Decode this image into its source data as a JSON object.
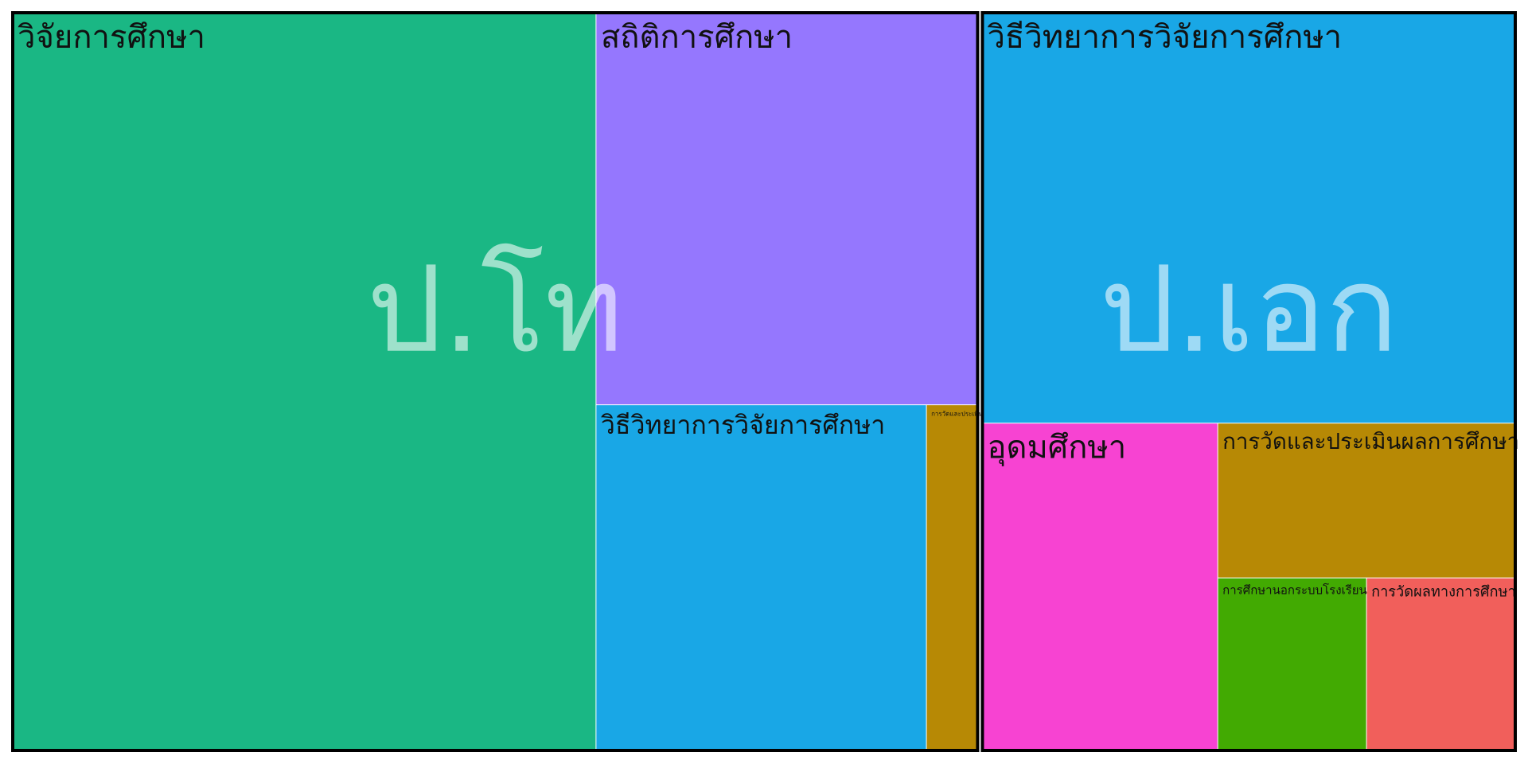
{
  "chart_data": {
    "type": "treemap",
    "groups": [
      {
        "name": "ป.โท",
        "children": [
          {
            "name": "วิจัยการศึกษา",
            "value": 486,
            "color": "#1ab784"
          },
          {
            "name": "สถิติการศึกษา",
            "value": 169,
            "color": "#9577fe"
          },
          {
            "name": "วิธีวิทยาการวิจัยการศึกษา",
            "value": 129,
            "color": "#19a7e6"
          },
          {
            "name": "การวัดและประเมินผลการศึกษา",
            "value": 20,
            "color": "#b78905"
          }
        ]
      },
      {
        "name": "ป.เอก",
        "children": [
          {
            "name": "วิธีวิทยาการวิจัยการศึกษา",
            "value": 247,
            "color": "#19a7e6"
          },
          {
            "name": "อุดมศึกษา",
            "value": 87,
            "color": "#f743d2"
          },
          {
            "name": "การวัดและประเมินผลการศึกษา",
            "value": 52,
            "color": "#b78905"
          },
          {
            "name": "การศึกษานอกระบบโรงเรียน",
            "value": 29,
            "color": "#42aa02"
          },
          {
            "name": "การวัดผลทางการศึกษา",
            "value": 29,
            "color": "#f15f5b"
          }
        ]
      }
    ]
  }
}
